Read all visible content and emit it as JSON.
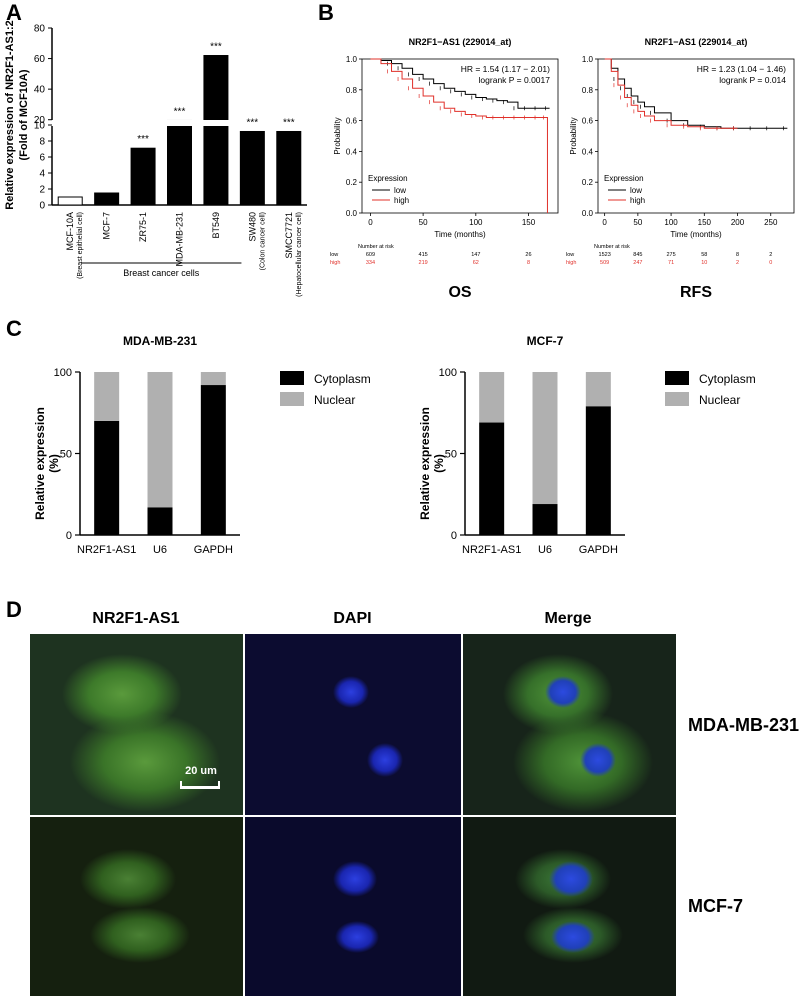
{
  "panels": {
    "a": "A",
    "b": "B",
    "c": "C",
    "d": "D"
  },
  "chart_data": [
    {
      "id": "A",
      "type": "bar",
      "ylabel": "Relative expression of NR2F1-AS1:2",
      "ylabel2": "(Fold of MCF10A)",
      "categories": [
        "MCF-10A",
        "MCF-7",
        "ZR75-1",
        "MDA-MB-231",
        "BT549",
        "SW480",
        "SMCC7721"
      ],
      "sublabels": [
        "(Breast epithelial cell)",
        "",
        "",
        "",
        "",
        "(Colon cancer cell)",
        "(Hepatocellular cancer cell)"
      ],
      "values": [
        1.0,
        1.5,
        7.1,
        19.5,
        62.0,
        12.3,
        12.3
      ],
      "significance": [
        "",
        "",
        "***",
        "***",
        "***",
        "***",
        "***"
      ],
      "fill": [
        "#ffffff",
        "#000000",
        "#000000",
        "#000000",
        "#000000",
        "#000000",
        "#000000"
      ],
      "group_label": "Breast cancer cells",
      "yticks_low": [
        0,
        2,
        4,
        6,
        8,
        10
      ],
      "yticks_high": [
        20,
        40,
        60,
        80
      ],
      "axis_break": [
        10,
        11
      ],
      "ylim": [
        0,
        80
      ]
    },
    {
      "id": "B-OS",
      "type": "line",
      "title": "NR2F1−AS1 (229014_at)",
      "big_label": "OS",
      "xlabel": "Time (months)",
      "ylabel": "Probability",
      "xticks": [
        0,
        50,
        100,
        150
      ],
      "yticks": [
        0.0,
        0.2,
        0.4,
        0.6,
        0.8,
        1.0
      ],
      "xlim": [
        -8,
        178
      ],
      "ylim": [
        0,
        1
      ],
      "annot1": "HR = 1.54 (1.17 − 2.01)",
      "annot2": "logrank P = 0.0017",
      "legend_title": "Expression",
      "legend_position": "bottom-left",
      "series": [
        {
          "name": "low",
          "color": "#000000",
          "x": [
            0,
            10,
            20,
            30,
            40,
            50,
            60,
            70,
            80,
            90,
            100,
            110,
            120,
            130,
            140,
            150,
            160,
            170
          ],
          "y": [
            1.0,
            0.99,
            0.97,
            0.94,
            0.9,
            0.87,
            0.84,
            0.81,
            0.79,
            0.77,
            0.75,
            0.74,
            0.73,
            0.72,
            0.68,
            0.68,
            0.68,
            0.68
          ]
        },
        {
          "name": "high",
          "color": "#e0302a",
          "x": [
            0,
            10,
            20,
            30,
            40,
            50,
            60,
            70,
            80,
            90,
            100,
            110,
            120,
            130,
            140,
            150,
            160,
            168,
            168
          ],
          "y": [
            1.0,
            0.97,
            0.92,
            0.87,
            0.81,
            0.76,
            0.72,
            0.68,
            0.66,
            0.64,
            0.63,
            0.62,
            0.62,
            0.62,
            0.62,
            0.62,
            0.62,
            0.62,
            0.0
          ]
        }
      ],
      "risk_header": "Number at risk",
      "risk_rows": [
        {
          "name": "low",
          "color": "#000000",
          "values": [
            "609",
            "415",
            "147",
            "26"
          ]
        },
        {
          "name": "high",
          "color": "#e0302a",
          "values": [
            "334",
            "219",
            "62",
            "8"
          ]
        }
      ]
    },
    {
      "id": "B-RFS",
      "type": "line",
      "title": "NR2F1−AS1 (229014_at)",
      "big_label": "RFS",
      "xlabel": "Time (months)",
      "ylabel": "Probability",
      "xticks": [
        0,
        50,
        100,
        150,
        200,
        250
      ],
      "yticks": [
        0.0,
        0.2,
        0.4,
        0.6,
        0.8,
        1.0
      ],
      "xlim": [
        -10,
        285
      ],
      "ylim": [
        0,
        1
      ],
      "annot1": "HR = 1.23 (1.04 − 1.46)",
      "annot2": "logrank P = 0.014",
      "legend_title": "Expression",
      "legend_position": "bottom-left",
      "series": [
        {
          "name": "low",
          "color": "#000000",
          "x": [
            0,
            10,
            20,
            30,
            40,
            50,
            60,
            75,
            100,
            125,
            150,
            175,
            200,
            225,
            250,
            275
          ],
          "y": [
            1.0,
            0.94,
            0.87,
            0.81,
            0.76,
            0.72,
            0.69,
            0.65,
            0.6,
            0.57,
            0.56,
            0.55,
            0.55,
            0.55,
            0.55,
            0.55
          ]
        },
        {
          "name": "high",
          "color": "#e0302a",
          "x": [
            0,
            10,
            20,
            30,
            40,
            50,
            60,
            75,
            100,
            125,
            150,
            175,
            200
          ],
          "y": [
            1.0,
            0.92,
            0.83,
            0.75,
            0.7,
            0.66,
            0.63,
            0.6,
            0.57,
            0.56,
            0.55,
            0.55,
            0.55
          ]
        }
      ],
      "risk_header": "Number at risk",
      "risk_rows": [
        {
          "name": "low",
          "color": "#000000",
          "values": [
            "1523",
            "845",
            "275",
            "58",
            "8",
            "2"
          ]
        },
        {
          "name": "high",
          "color": "#e0302a",
          "values": [
            "509",
            "247",
            "71",
            "10",
            "2",
            "0"
          ]
        }
      ]
    },
    {
      "id": "C-MDA",
      "type": "bar",
      "stacked": true,
      "title": "MDA-MB-231",
      "ylabel": "Relative expression",
      "ylabel2": "(%)",
      "categories": [
        "NR2F1-AS1",
        "U6",
        "GAPDH"
      ],
      "yticks": [
        0,
        50,
        100
      ],
      "ylim": [
        0,
        100
      ],
      "series": [
        {
          "name": "Cytoplasm",
          "color": "#000000",
          "values": [
            70,
            17,
            92
          ]
        },
        {
          "name": "Nuclear",
          "color": "#b0b0b0",
          "values": [
            30,
            83,
            8
          ]
        }
      ]
    },
    {
      "id": "C-MCF7",
      "type": "bar",
      "stacked": true,
      "title": "MCF-7",
      "ylabel": "Relative expression",
      "ylabel2": "(%)",
      "categories": [
        "NR2F1-AS1",
        "U6",
        "GAPDH"
      ],
      "yticks": [
        0,
        50,
        100
      ],
      "ylim": [
        0,
        100
      ],
      "series": [
        {
          "name": "Cytoplasm",
          "color": "#000000",
          "values": [
            69,
            19,
            79
          ]
        },
        {
          "name": "Nuclear",
          "color": "#b0b0b0",
          "values": [
            31,
            81,
            21
          ]
        }
      ]
    }
  ],
  "microscopy": {
    "columns": [
      "NR2F1-AS1",
      "DAPI",
      "Merge"
    ],
    "rows": [
      "MDA-MB-231",
      "MCF-7"
    ],
    "scale_bar": "20 um"
  }
}
